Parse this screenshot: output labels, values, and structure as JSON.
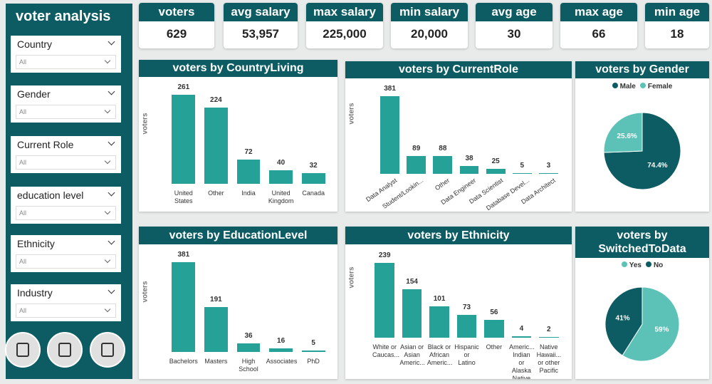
{
  "title": "voter analysis",
  "filters": [
    {
      "label": "Country",
      "value": "All"
    },
    {
      "label": "Gender",
      "value": "All"
    },
    {
      "label": "Current Role",
      "value": "All"
    },
    {
      "label": "education level",
      "value": "All"
    },
    {
      "label": "Ethnicity",
      "value": "All"
    },
    {
      "label": "Industry",
      "value": "All"
    }
  ],
  "cards": [
    {
      "label": "voters",
      "value": "629"
    },
    {
      "label": "avg salary",
      "value": "53,957"
    },
    {
      "label": "max salary",
      "value": "225,000"
    },
    {
      "label": "min salary",
      "value": "20,000"
    },
    {
      "label": "avg age",
      "value": "30"
    },
    {
      "label": "max age",
      "value": "66"
    },
    {
      "label": "min age",
      "value": "18"
    }
  ],
  "chart_data": [
    {
      "type": "bar",
      "title": "voters by CountryLiving",
      "y_label": "voters",
      "color": "#26a197",
      "categories": [
        "United States",
        "Other",
        "India",
        "United Kingdom",
        "Canada"
      ],
      "values": [
        261,
        224,
        72,
        40,
        32
      ]
    },
    {
      "type": "bar",
      "title": "voters by CurrentRole",
      "y_label": "voters",
      "color": "#26a197",
      "categories": [
        "Data Analyst",
        "Student/Lookin...",
        "Other",
        "Data Engineer",
        "Data Scientist",
        "Database Devel...",
        "Data Architect"
      ],
      "values": [
        381,
        89,
        88,
        38,
        25,
        5,
        3
      ]
    },
    {
      "type": "pie",
      "title": "voters by Gender",
      "categories": [
        "Male",
        "Female"
      ],
      "values": [
        74.4,
        25.6
      ],
      "value_labels": [
        "74.4%",
        "25.6%"
      ],
      "colors": [
        "#0d5c63",
        "#5cc2b7"
      ]
    },
    {
      "type": "bar",
      "title": "voters by EducationLevel",
      "y_label": "voters",
      "color": "#26a197",
      "categories": [
        "Bachelors",
        "Masters",
        "High School",
        "Associates",
        "PhD"
      ],
      "values": [
        381,
        191,
        36,
        16,
        5
      ]
    },
    {
      "type": "bar",
      "title": "voters by Ethnicity",
      "y_label": "voters",
      "color": "#26a197",
      "categories": [
        "White or Caucas...",
        "Asian or Asian Americ...",
        "Black or African Americ...",
        "Hispanic or Latino",
        "Other",
        "Americ... Indian or Alaska Native",
        "Native Hawaii... or other Pacific ..."
      ],
      "values": [
        239,
        154,
        101,
        73,
        56,
        4,
        2
      ]
    },
    {
      "type": "pie",
      "title": "voters by SwitchedToData",
      "categories": [
        "Yes",
        "No"
      ],
      "values": [
        59,
        41
      ],
      "value_labels": [
        "59%",
        "41%"
      ],
      "colors": [
        "#5cc2b7",
        "#0d5c63"
      ]
    }
  ]
}
